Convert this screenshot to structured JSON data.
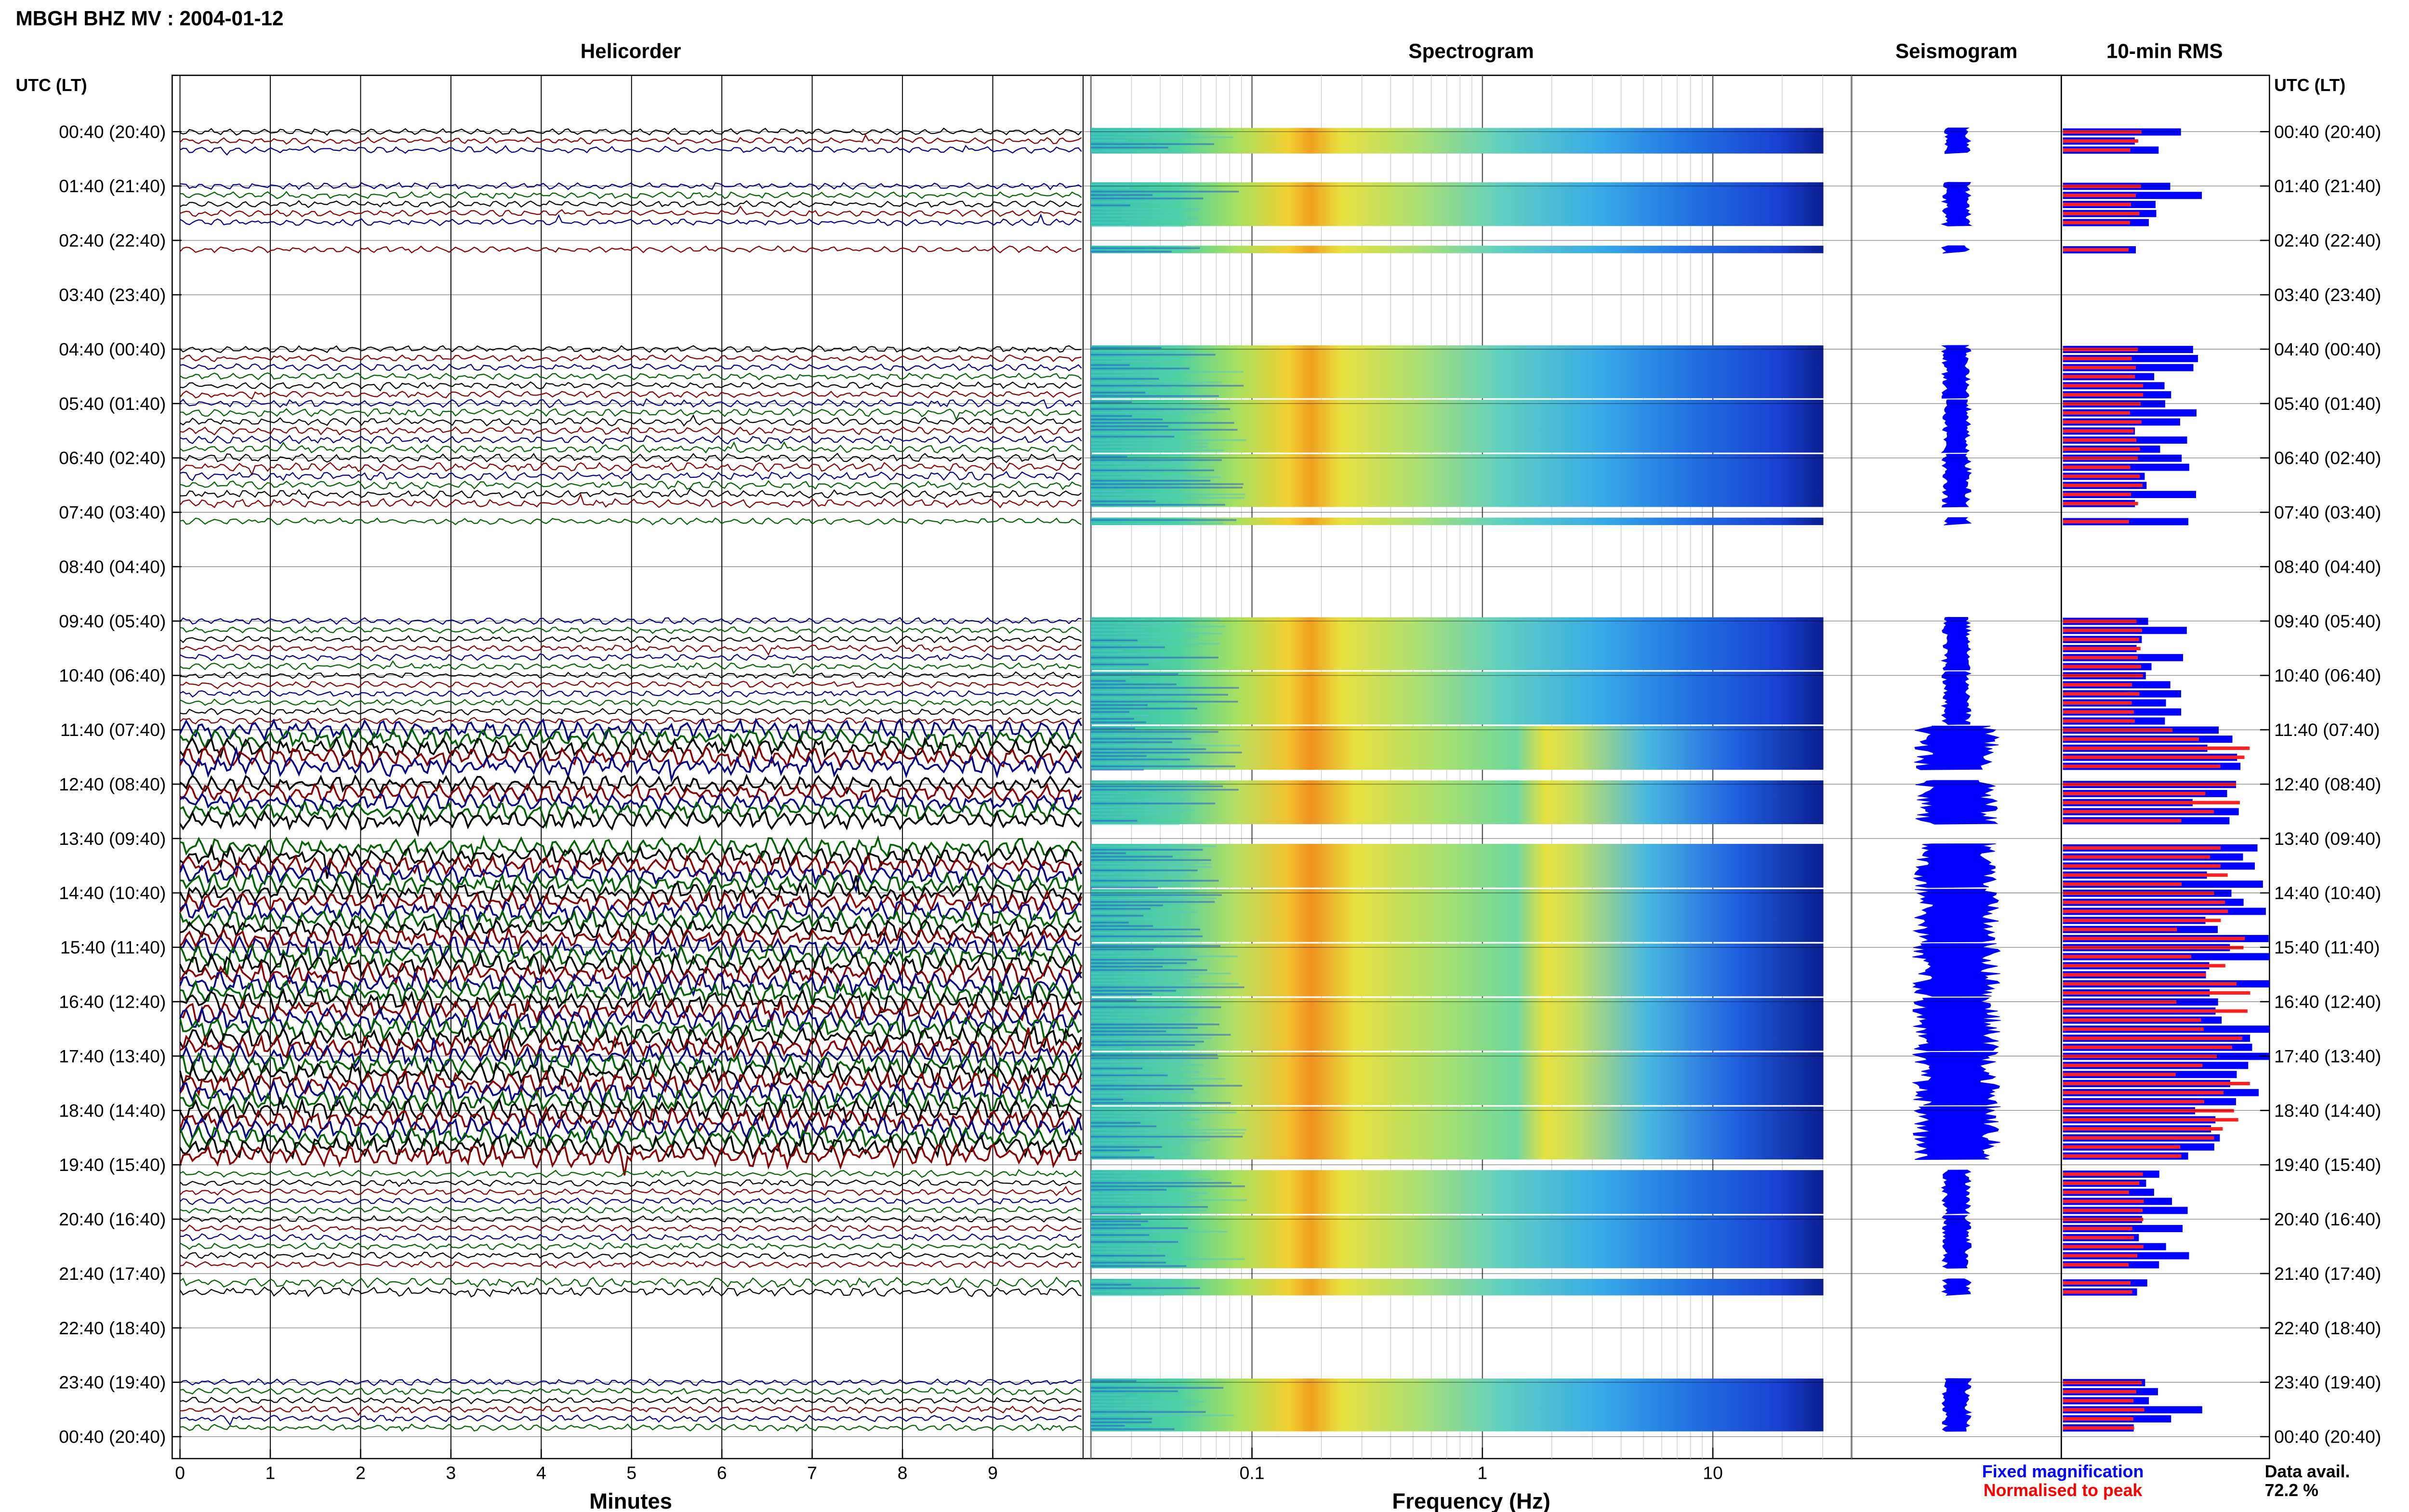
{
  "figure": {
    "title": "MBGH BHZ MV : 2004-01-12",
    "panels": {
      "helicorder": "Helicorder",
      "spectrogram": "Spectrogram",
      "seismogram": "Seismogram",
      "rms": "10-min RMS"
    },
    "utc_header": "UTC (LT)",
    "row_labels": [
      "00:40 (20:40)",
      "01:40 (21:40)",
      "02:40 (22:40)",
      "03:40 (23:40)",
      "04:40 (00:40)",
      "05:40 (01:40)",
      "06:40 (02:40)",
      "07:40 (03:40)",
      "08:40 (04:40)",
      "09:40 (05:40)",
      "10:40 (06:40)",
      "11:40 (07:40)",
      "12:40 (08:40)",
      "13:40 (09:40)",
      "14:40 (10:40)",
      "15:40 (11:40)",
      "16:40 (12:40)",
      "17:40 (13:40)",
      "18:40 (14:40)",
      "19:40 (15:40)",
      "20:40 (16:40)",
      "21:40 (17:40)",
      "22:40 (18:40)",
      "23:40 (19:40)",
      "00:40 (20:40)"
    ],
    "x_axis_helicorder": {
      "label": "Minutes",
      "ticks": [
        "0",
        "1",
        "2",
        "3",
        "4",
        "5",
        "6",
        "7",
        "8",
        "9"
      ]
    },
    "x_axis_spectrogram": {
      "label": "Frequency (Hz)",
      "ticks": [
        "0.1",
        "1",
        "10"
      ]
    },
    "legend": {
      "fixed": "Fixed magnification",
      "normalised": "Normalised to peak",
      "fixed_color": "#0000ff",
      "normalised_color": "#ff0000"
    },
    "data_avail_label": "Data avail.",
    "data_avail_value": "72.2 %"
  },
  "colors": {
    "trace_cycle": [
      "#000000",
      "#8b0000",
      "#00008b",
      "#006400"
    ],
    "seismogram": "#0000ff",
    "rms_fixed": "#0000ff",
    "rms_normalised": "#ff2020"
  },
  "chart_data": {
    "type": "heatmap",
    "station": "MBGH",
    "channel": "BHZ",
    "network": "MV",
    "date": "2004-01-12",
    "rows_per_hour": 6,
    "hours": 24,
    "x_minutes_range": [
      0,
      10
    ],
    "frequency_range_hz": [
      0.02,
      40
    ],
    "frequency_scale": "log",
    "data_availability_percent": 72.2,
    "hour_activity": [
      {
        "hour": "00:40",
        "rows": [
          1,
          1,
          1,
          0,
          0,
          0
        ],
        "amp": 1.0
      },
      {
        "hour": "01:40",
        "rows": [
          1,
          1,
          1,
          1,
          1,
          0
        ],
        "amp": 1.0
      },
      {
        "hour": "02:40",
        "rows": [
          0,
          1,
          0,
          0,
          0,
          0
        ],
        "amp": 1.0
      },
      {
        "hour": "03:40",
        "rows": [
          0,
          0,
          0,
          0,
          0,
          0
        ],
        "amp": 1.0
      },
      {
        "hour": "04:40",
        "rows": [
          1,
          1,
          1,
          1,
          1,
          1
        ],
        "amp": 1.0
      },
      {
        "hour": "05:40",
        "rows": [
          1,
          1,
          1,
          1,
          1,
          1
        ],
        "amp": 1.2
      },
      {
        "hour": "06:40",
        "rows": [
          1,
          1,
          1,
          1,
          1,
          1
        ],
        "amp": 1.3
      },
      {
        "hour": "07:40",
        "rows": [
          0,
          1,
          0,
          0,
          0,
          0
        ],
        "amp": 1.0
      },
      {
        "hour": "08:40",
        "rows": [
          0,
          0,
          0,
          0,
          0,
          0
        ],
        "amp": 1.0
      },
      {
        "hour": "09:40",
        "rows": [
          1,
          1,
          1,
          1,
          1,
          1
        ],
        "amp": 1.0
      },
      {
        "hour": "10:40",
        "rows": [
          1,
          1,
          1,
          1,
          1,
          1
        ],
        "amp": 1.0
      },
      {
        "hour": "11:40",
        "rows": [
          1,
          1,
          1,
          1,
          1,
          0
        ],
        "amp": 4.0
      },
      {
        "hour": "12:40",
        "rows": [
          1,
          1,
          1,
          1,
          1,
          0
        ],
        "amp": 3.5
      },
      {
        "hour": "13:40",
        "rows": [
          0,
          1,
          1,
          1,
          1,
          1
        ],
        "amp": 4.0
      },
      {
        "hour": "14:40",
        "rows": [
          1,
          1,
          1,
          1,
          1,
          1
        ],
        "amp": 4.0
      },
      {
        "hour": "15:40",
        "rows": [
          1,
          1,
          1,
          1,
          1,
          1
        ],
        "amp": 4.5
      },
      {
        "hour": "16:40",
        "rows": [
          1,
          1,
          1,
          1,
          1,
          1
        ],
        "amp": 4.5
      },
      {
        "hour": "17:40",
        "rows": [
          1,
          1,
          1,
          1,
          1,
          1
        ],
        "amp": 4.5
      },
      {
        "hour": "18:40",
        "rows": [
          1,
          1,
          1,
          1,
          1,
          1
        ],
        "amp": 4.5
      },
      {
        "hour": "19:40",
        "rows": [
          0,
          1,
          1,
          1,
          1,
          1
        ],
        "amp": 1.0
      },
      {
        "hour": "20:40",
        "rows": [
          1,
          1,
          1,
          1,
          1,
          1
        ],
        "amp": 1.0
      },
      {
        "hour": "21:40",
        "rows": [
          0,
          1,
          1,
          0,
          0,
          0
        ],
        "amp": 1.5
      },
      {
        "hour": "22:40",
        "rows": [
          0,
          0,
          0,
          0,
          0,
          0
        ],
        "amp": 1.0
      },
      {
        "hour": "23:40",
        "rows": [
          1,
          1,
          1,
          1,
          1,
          1
        ],
        "amp": 1.0
      }
    ]
  }
}
